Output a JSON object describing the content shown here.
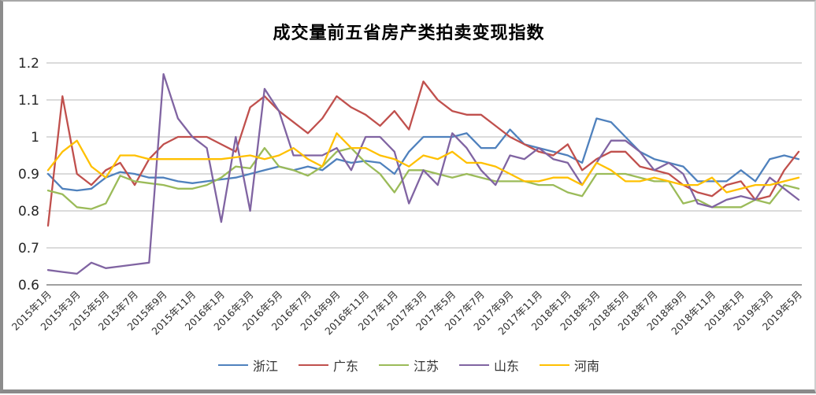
{
  "chart_data": {
    "type": "line",
    "title": "成交量前五省房产类拍卖变现指数",
    "ylim": [
      0.6,
      1.2
    ],
    "yticks": [
      0.6,
      0.7,
      0.8,
      0.9,
      1,
      1.1,
      1.2
    ],
    "grid": true,
    "legend_position": "bottom",
    "grid_color": "#b7b7b7",
    "axis_color": "#808080",
    "tick_label_color": "#303030",
    "tick_every": 2,
    "categories": [
      "2015年1月",
      "2015年2月",
      "2015年3月",
      "2015年4月",
      "2015年5月",
      "2015年6月",
      "2015年7月",
      "2015年8月",
      "2015年9月",
      "2015年10月",
      "2015年11月",
      "2015年12月",
      "2016年1月",
      "2016年2月",
      "2016年3月",
      "2016年4月",
      "2016年5月",
      "2016年6月",
      "2016年7月",
      "2016年8月",
      "2016年9月",
      "2016年10月",
      "2016年11月",
      "2016年12月",
      "2017年1月",
      "2017年2月",
      "2017年3月",
      "2017年4月",
      "2017年5月",
      "2017年6月",
      "2017年7月",
      "2017年8月",
      "2017年9月",
      "2017年10月",
      "2017年11月",
      "2017年12月",
      "2018年1月",
      "2018年2月",
      "2018年3月",
      "2018年4月",
      "2018年5月",
      "2018年6月",
      "2018年7月",
      "2018年8月",
      "2018年9月",
      "2018年10月",
      "2018年11月",
      "2018年12月",
      "2019年1月",
      "2019年2月",
      "2019年3月",
      "2019年4月",
      "2019年5月"
    ],
    "series": [
      {
        "id": "zhejiang",
        "name": "浙江",
        "color": "#4F81BD",
        "values": [
          0.9,
          0.86,
          0.855,
          0.86,
          0.89,
          0.905,
          0.9,
          0.89,
          0.89,
          0.88,
          0.875,
          0.88,
          0.885,
          0.89,
          0.9,
          0.91,
          0.92,
          0.91,
          0.92,
          0.91,
          0.94,
          0.93,
          0.935,
          0.93,
          0.9,
          0.96,
          1.0,
          1.0,
          1.0,
          1.01,
          0.97,
          0.97,
          1.02,
          0.98,
          0.97,
          0.96,
          0.95,
          0.93,
          1.05,
          1.04,
          1.0,
          0.96,
          0.94,
          0.93,
          0.92,
          0.88,
          0.88,
          0.88,
          0.91,
          0.88,
          0.94,
          0.95,
          0.94
        ]
      },
      {
        "id": "guangdong",
        "name": "广东",
        "color": "#C0504D",
        "values": [
          0.76,
          1.11,
          0.9,
          0.87,
          0.91,
          0.93,
          0.87,
          0.94,
          0.98,
          1.0,
          1.0,
          1.0,
          0.98,
          0.96,
          1.08,
          1.11,
          1.07,
          1.04,
          1.01,
          1.05,
          1.11,
          1.08,
          1.06,
          1.03,
          1.07,
          1.02,
          1.15,
          1.1,
          1.07,
          1.06,
          1.06,
          1.03,
          1.0,
          0.98,
          0.96,
          0.95,
          0.98,
          0.91,
          0.94,
          0.96,
          0.96,
          0.92,
          0.91,
          0.9,
          0.87,
          0.85,
          0.84,
          0.87,
          0.88,
          0.83,
          0.84,
          0.91,
          0.96
        ]
      },
      {
        "id": "jiangsu",
        "name": "江苏",
        "color": "#9BBB59",
        "values": [
          0.855,
          0.845,
          0.81,
          0.805,
          0.82,
          0.895,
          0.88,
          0.875,
          0.87,
          0.86,
          0.86,
          0.87,
          0.89,
          0.92,
          0.915,
          0.97,
          0.92,
          0.91,
          0.895,
          0.92,
          0.96,
          0.97,
          0.93,
          0.9,
          0.85,
          0.91,
          0.91,
          0.9,
          0.89,
          0.9,
          0.89,
          0.88,
          0.88,
          0.88,
          0.87,
          0.87,
          0.85,
          0.84,
          0.9,
          0.9,
          0.9,
          0.89,
          0.88,
          0.88,
          0.82,
          0.83,
          0.81,
          0.81,
          0.81,
          0.83,
          0.82,
          0.87,
          0.86
        ]
      },
      {
        "id": "shandong",
        "name": "山东",
        "color": "#8064A2",
        "values": [
          0.64,
          0.635,
          0.63,
          0.66,
          0.645,
          0.65,
          0.655,
          0.66,
          1.17,
          1.05,
          1.0,
          0.97,
          0.77,
          1.0,
          0.8,
          1.13,
          1.07,
          0.95,
          0.95,
          0.95,
          0.97,
          0.91,
          1.0,
          1.0,
          0.96,
          0.82,
          0.91,
          0.87,
          1.01,
          0.97,
          0.91,
          0.87,
          0.95,
          0.94,
          0.97,
          0.94,
          0.93,
          0.87,
          0.93,
          0.99,
          0.99,
          0.96,
          0.91,
          0.93,
          0.9,
          0.82,
          0.81,
          0.83,
          0.84,
          0.83,
          0.89,
          0.86,
          0.83
        ]
      },
      {
        "id": "henan",
        "name": "河南",
        "color": "#FFC000",
        "values": [
          0.91,
          0.96,
          0.99,
          0.92,
          0.89,
          0.95,
          0.95,
          0.94,
          0.94,
          0.94,
          0.94,
          0.94,
          0.94,
          0.945,
          0.95,
          0.94,
          0.95,
          0.97,
          0.94,
          0.92,
          1.01,
          0.97,
          0.97,
          0.95,
          0.94,
          0.92,
          0.95,
          0.94,
          0.96,
          0.93,
          0.93,
          0.92,
          0.9,
          0.88,
          0.88,
          0.89,
          0.89,
          0.87,
          0.93,
          0.91,
          0.88,
          0.88,
          0.89,
          0.88,
          0.87,
          0.87,
          0.89,
          0.85,
          0.86,
          0.87,
          0.87,
          0.88,
          0.89
        ]
      }
    ]
  }
}
